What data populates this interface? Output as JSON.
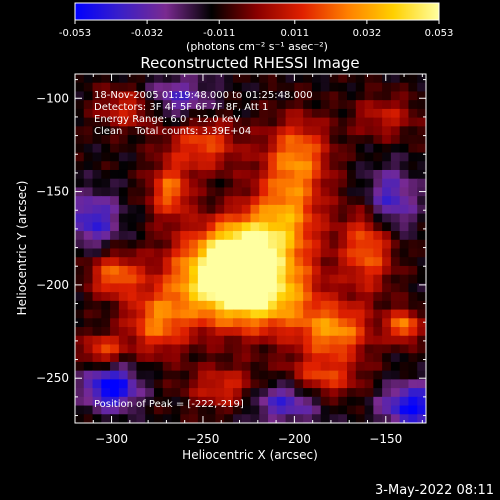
{
  "chart_data": {
    "type": "heatmap",
    "title": "Reconstructed RHESSI Image",
    "xlabel": "Heliocentric X (arcsec)",
    "ylabel": "Heliocentric Y (arcsec)",
    "xlim": [
      -320,
      -128
    ],
    "ylim": [
      -274,
      -87
    ],
    "x_ticks": [
      -300,
      -250,
      -200,
      -150
    ],
    "y_ticks": [
      -100,
      -150,
      -200,
      -250
    ],
    "colorbar": {
      "min": -0.053,
      "max": 0.053,
      "ticks": [
        "-0.053",
        "-0.032",
        "-0.011",
        "0.011",
        "0.032",
        "0.053"
      ],
      "tick_values": [
        -0.053,
        -0.032,
        -0.011,
        0.011,
        0.032,
        0.053
      ],
      "label": "(photons cm⁻² s⁻¹ asec⁻²)",
      "colors": [
        "#0000ff",
        "#3a1fc8",
        "#7a2a90",
        "#000000",
        "#8a0000",
        "#e02000",
        "#ff8000",
        "#ffd000",
        "#ffffa0"
      ]
    },
    "annotations": [
      "18-Nov-2005 01:19:48.000 to 01:25:48.000",
      "Detectors: 3F 4F 5F 6F 7F 8F, Att 1",
      "Energy Range: 6.0 - 12.0 keV",
      "Clean    Total counts: 3.39E+04"
    ],
    "peak_label": "Position of Peak = [-222,-219]",
    "peak": {
      "x": -222,
      "y": -219
    },
    "blobs": [
      {
        "x": -245,
        "y": -195,
        "sx": 18,
        "sy": 16,
        "amp": 0.05
      },
      {
        "x": -218,
        "y": -205,
        "sx": 20,
        "sy": 14,
        "amp": 0.055
      },
      {
        "x": -228,
        "y": -180,
        "sx": 14,
        "sy": 12,
        "amp": 0.045
      },
      {
        "x": -205,
        "y": -165,
        "sx": 14,
        "sy": 18,
        "amp": 0.04
      },
      {
        "x": -198,
        "y": -130,
        "sx": 12,
        "sy": 14,
        "amp": 0.035
      },
      {
        "x": -250,
        "y": -125,
        "sx": 14,
        "sy": 10,
        "amp": 0.03
      },
      {
        "x": -268,
        "y": -150,
        "sx": 8,
        "sy": 10,
        "amp": 0.035
      },
      {
        "x": -275,
        "y": -220,
        "sx": 12,
        "sy": 12,
        "amp": 0.035
      },
      {
        "x": -298,
        "y": -195,
        "sx": 10,
        "sy": 8,
        "amp": 0.035
      },
      {
        "x": -305,
        "y": -235,
        "sx": 8,
        "sy": 6,
        "amp": 0.03
      },
      {
        "x": -160,
        "y": -180,
        "sx": 10,
        "sy": 16,
        "amp": 0.035
      },
      {
        "x": -178,
        "y": -225,
        "sx": 14,
        "sy": 10,
        "amp": 0.04
      },
      {
        "x": -140,
        "y": -222,
        "sx": 6,
        "sy": 6,
        "amp": 0.04
      },
      {
        "x": -185,
        "y": -250,
        "sx": 14,
        "sy": 8,
        "amp": 0.03
      },
      {
        "x": -238,
        "y": -255,
        "sx": 14,
        "sy": 8,
        "amp": 0.025
      },
      {
        "x": -290,
        "y": -105,
        "sx": 12,
        "sy": 8,
        "amp": 0.025
      },
      {
        "x": -150,
        "y": -110,
        "sx": 12,
        "sy": 8,
        "amp": 0.02
      },
      {
        "x": -300,
        "y": -255,
        "sx": 10,
        "sy": 8,
        "amp": -0.045
      },
      {
        "x": -135,
        "y": -265,
        "sx": 12,
        "sy": 8,
        "amp": -0.04
      },
      {
        "x": -148,
        "y": -155,
        "sx": 10,
        "sy": 12,
        "amp": -0.03
      },
      {
        "x": -310,
        "y": -165,
        "sx": 10,
        "sy": 10,
        "amp": -0.03
      },
      {
        "x": -265,
        "y": -100,
        "sx": 14,
        "sy": 8,
        "amp": -0.025
      },
      {
        "x": -205,
        "y": -262,
        "sx": 14,
        "sy": 8,
        "amp": -0.03
      }
    ]
  },
  "footer": {
    "date": "3-May-2022 08:11"
  }
}
